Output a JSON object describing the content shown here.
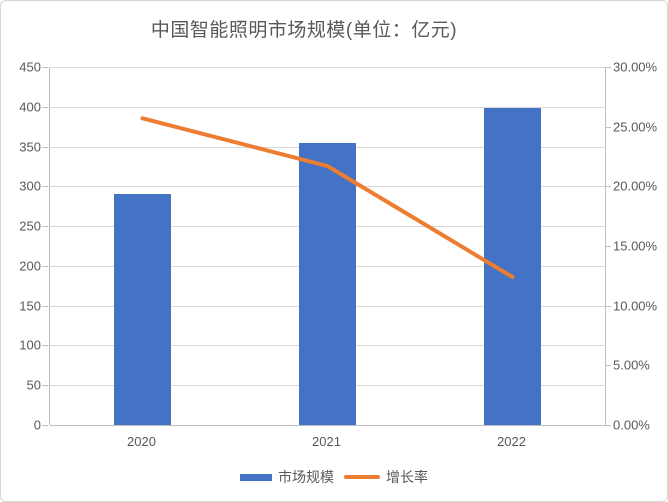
{
  "chart": {
    "title": "中国智能照明市场规模(单位：亿元)",
    "colors": {
      "bar": "#4472C4",
      "line": "#ED7D31",
      "gridline": "#D9D9D9",
      "axis": "#BFBFBF",
      "text": "#595959"
    },
    "legend": [
      {
        "label": "市场规模",
        "marker": "bar-swatch"
      },
      {
        "label": "增长率",
        "marker": "line-swatch"
      }
    ]
  },
  "chart_data": {
    "type": "bar",
    "subtype": "bar+line combo, dual axis",
    "title": "中国智能照明市场规模(单位：亿元)",
    "categories": [
      "2020",
      "2021",
      "2022"
    ],
    "series": [
      {
        "name": "市场规模",
        "type": "bar",
        "axis": "left",
        "color": "#4472C4",
        "values": [
          291,
          354,
          398
        ]
      },
      {
        "name": "增长率",
        "type": "line",
        "axis": "right",
        "color": "#ED7D31",
        "values": [
          25.7,
          21.7,
          12.4
        ],
        "unit": "%"
      }
    ],
    "left_axis": {
      "min": 0,
      "max": 450,
      "step": 50,
      "tick_labels": [
        "0",
        "50",
        "100",
        "150",
        "200",
        "250",
        "300",
        "350",
        "400",
        "450"
      ]
    },
    "right_axis": {
      "min": 0,
      "max": 30,
      "step": 5,
      "tick_labels": [
        "0.00%",
        "5.00%",
        "10.00%",
        "15.00%",
        "20.00%",
        "25.00%",
        "30.00%"
      ]
    },
    "grid": "horizontal only",
    "legend_position": "bottom center",
    "xlabel": "",
    "ylabel": ""
  }
}
